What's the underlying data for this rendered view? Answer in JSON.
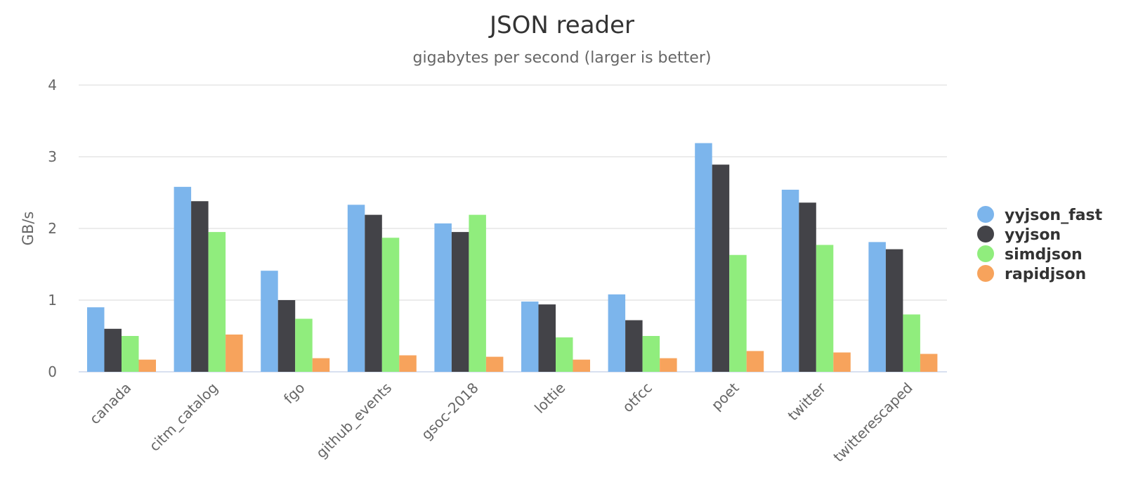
{
  "chart_data": {
    "type": "bar",
    "title": "JSON reader",
    "subtitle": "gigabytes per second (larger is better)",
    "xlabel": "",
    "ylabel": "GB/s",
    "ylim": [
      0,
      4
    ],
    "yticks": [
      "0",
      "1",
      "2",
      "3",
      "4"
    ],
    "grid": true,
    "legend_position": "right",
    "categories": [
      "canada",
      "citm_catalog",
      "fgo",
      "github_events",
      "gsoc-2018",
      "lottie",
      "otfcc",
      "poet",
      "twitter",
      "twitterescaped"
    ],
    "series": [
      {
        "name": "yyjson_fast",
        "color": "#7cb5ec",
        "values": [
          0.9,
          2.58,
          1.41,
          2.33,
          2.07,
          0.98,
          1.08,
          3.19,
          2.54,
          1.81
        ]
      },
      {
        "name": "yyjson",
        "color": "#434348",
        "values": [
          0.6,
          2.38,
          1.0,
          2.19,
          1.95,
          0.94,
          0.72,
          2.89,
          2.36,
          1.71
        ]
      },
      {
        "name": "simdjson",
        "color": "#90ed7d",
        "values": [
          0.5,
          1.95,
          0.74,
          1.87,
          2.19,
          0.48,
          0.5,
          1.63,
          1.77,
          0.8
        ]
      },
      {
        "name": "rapidjson",
        "color": "#f7a35c",
        "values": [
          0.17,
          0.52,
          0.19,
          0.23,
          0.21,
          0.17,
          0.19,
          0.29,
          0.27,
          0.25
        ]
      }
    ]
  }
}
